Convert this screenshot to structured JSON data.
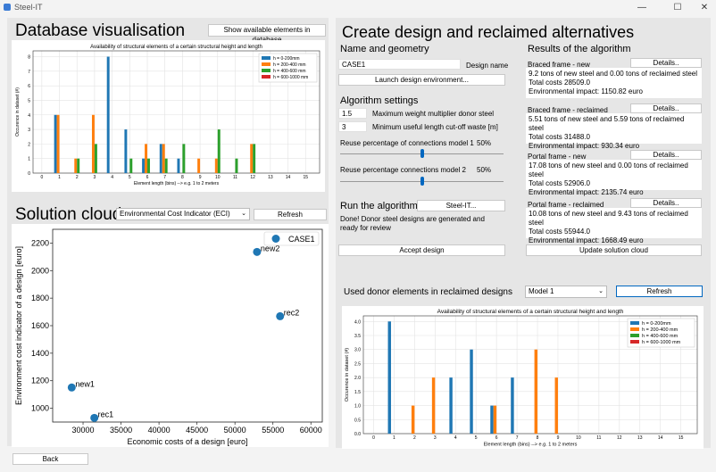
{
  "window": {
    "title": "Steel-IT",
    "minimize": "—",
    "maximize": "☐",
    "close": "✕"
  },
  "database": {
    "title": "Database visualisation",
    "show_button": "Show available elements in database"
  },
  "solution": {
    "title": "Solution cloud",
    "dropdown_value": "Environmental Cost Indicator (ECI)",
    "refresh": "Refresh"
  },
  "back": "Back",
  "create": {
    "title": "Create design and reclaimed alternatives",
    "name_geom": "Name and geometry",
    "design_name_value": "CASE1",
    "design_name_label": "Design name",
    "launch": "Launch design environment...",
    "algo_settings": "Algorithm settings",
    "max_weight_value": "1.5",
    "max_weight_label": "Maximum weight multiplier donor steel",
    "min_length_value": "3",
    "min_length_label": "Minimum useful length cut-off waste [m]",
    "reuse1_label": "Reuse percentage of connections model 1",
    "reuse1_value": "50%",
    "reuse1_level": 0.5,
    "reuse2_label": "Reuse percentage connections model 2",
    "reuse2_value": "50%",
    "reuse2_level": 0.5,
    "run_label": "Run the algorithm",
    "run_button": "Steel-IT...",
    "status": "Done! Donor steel designs are generated and ready for review",
    "accept": "Accept design"
  },
  "results": {
    "title": "Results of the algorithm",
    "items": [
      {
        "name": "Braced frame - new",
        "details": "Details..",
        "l1": "9.2 tons of new steel and 0.00 tons of reclaimed steel",
        "l2": "Total costs 28509.0",
        "l3": "Environmental impact: 1150.82 euro"
      },
      {
        "name": "Braced frame - reclaimed",
        "details": "Details..",
        "l1": "5.51 tons of new steel and 5.59 tons of reclaimed steel",
        "l2": "Total costs 31488.0",
        "l3": "Environmental impact: 930.34 euro"
      },
      {
        "name": "Portal frame - new",
        "details": "Details..",
        "l1": "17.08 tons of new steel and 0.00 tons of reclaimed steel",
        "l2": "Total costs 52906.0",
        "l3": "Environmental impact: 2135.74 euro"
      },
      {
        "name": "Portal frame - reclaimed",
        "details": "Details..",
        "l1": "10.08 tons of new steel and 9.43 tons of reclaimed steel",
        "l2": "Total costs 55944.0",
        "l3": "Environmental impact: 1668.49 euro"
      }
    ],
    "update": "Update solution cloud"
  },
  "donor": {
    "title": "Used donor elements in reclaimed designs",
    "dropdown_value": "Model 1",
    "refresh": "Refresh"
  },
  "colors": {
    "blue": "#1f77b4",
    "orange": "#ff7f0e",
    "green": "#2ca02c",
    "red": "#d62728"
  },
  "chart_data": [
    {
      "type": "bar",
      "title": "Availability of structural elements of a certain structural height and length",
      "xlabel": "Element length (bins) --> e.g. 1 to 2 meters",
      "ylabel": "Occurence in dataset (#)",
      "x_ticks": [
        0,
        1,
        2,
        3,
        4,
        5,
        6,
        7,
        8,
        9,
        10,
        11,
        12,
        13,
        14,
        15
      ],
      "y_ticks": [
        0,
        1,
        2,
        3,
        4,
        5,
        6,
        7,
        8
      ],
      "ylim": [
        0,
        8.4
      ],
      "grid": true,
      "legend_position": "top-right",
      "series": [
        {
          "name": "h = 0-200mm",
          "x": [
            1,
            4,
            5,
            6,
            7,
            8
          ],
          "values": [
            4,
            8,
            3,
            1,
            2,
            1
          ]
        },
        {
          "name": "h = 200-400 mm",
          "x": [
            1,
            2,
            3,
            6,
            7,
            9,
            10,
            12
          ],
          "values": [
            4,
            1,
            4,
            2,
            2,
            1,
            1,
            2
          ]
        },
        {
          "name": "h = 400-600 mm",
          "x": [
            2,
            3,
            5,
            6,
            7,
            8,
            10,
            11,
            12
          ],
          "values": [
            1,
            2,
            1,
            1,
            1,
            2,
            3,
            1,
            2
          ]
        },
        {
          "name": "h = 600-1000 mm",
          "x": [],
          "values": []
        }
      ]
    },
    {
      "type": "scatter",
      "xlabel": "Economic costs of a design [euro]",
      "ylabel": "Environment cost indicator of a design [euro]",
      "x_ticks": [
        30000,
        35000,
        40000,
        45000,
        50000,
        55000,
        60000
      ],
      "y_ticks": [
        1000,
        1200,
        1400,
        1600,
        1800,
        2000,
        2200
      ],
      "xlim": [
        26000,
        61500
      ],
      "ylim": [
        900,
        2300
      ],
      "legend": [
        "CASE1"
      ],
      "legend_position": "top-right",
      "points": [
        {
          "label": "new1",
          "x": 28509,
          "y": 1150.82
        },
        {
          "label": "rec1",
          "x": 31488,
          "y": 930.34
        },
        {
          "label": "new2",
          "x": 52906,
          "y": 2135.74
        },
        {
          "label": "rec2",
          "x": 55944,
          "y": 1668.49
        }
      ]
    },
    {
      "type": "bar",
      "title": "Availability of structural elements of a certain structural height and length",
      "xlabel": "Element length (bins) --> e.g. 1 to 2 meters",
      "ylabel": "Occurence in dataset (#)",
      "x_ticks": [
        0,
        1,
        2,
        3,
        4,
        5,
        6,
        7,
        8,
        9,
        10,
        11,
        12,
        13,
        14,
        15
      ],
      "y_ticks": [
        0.0,
        0.5,
        1.0,
        1.5,
        2.0,
        2.5,
        3.0,
        3.5,
        4.0
      ],
      "ylim": [
        0,
        4.2
      ],
      "grid": true,
      "legend_position": "top-right",
      "series": [
        {
          "name": "h = 0-200mm",
          "x": [
            1,
            4,
            5,
            6,
            7
          ],
          "values": [
            4,
            2,
            3,
            1,
            2
          ]
        },
        {
          "name": "h = 200-400 mm",
          "x": [
            2,
            3,
            6,
            8,
            9
          ],
          "values": [
            1,
            2,
            1,
            3,
            2
          ]
        },
        {
          "name": "h = 400-600 mm",
          "x": [],
          "values": []
        },
        {
          "name": "h = 600-1000 mm",
          "x": [],
          "values": []
        }
      ]
    }
  ]
}
